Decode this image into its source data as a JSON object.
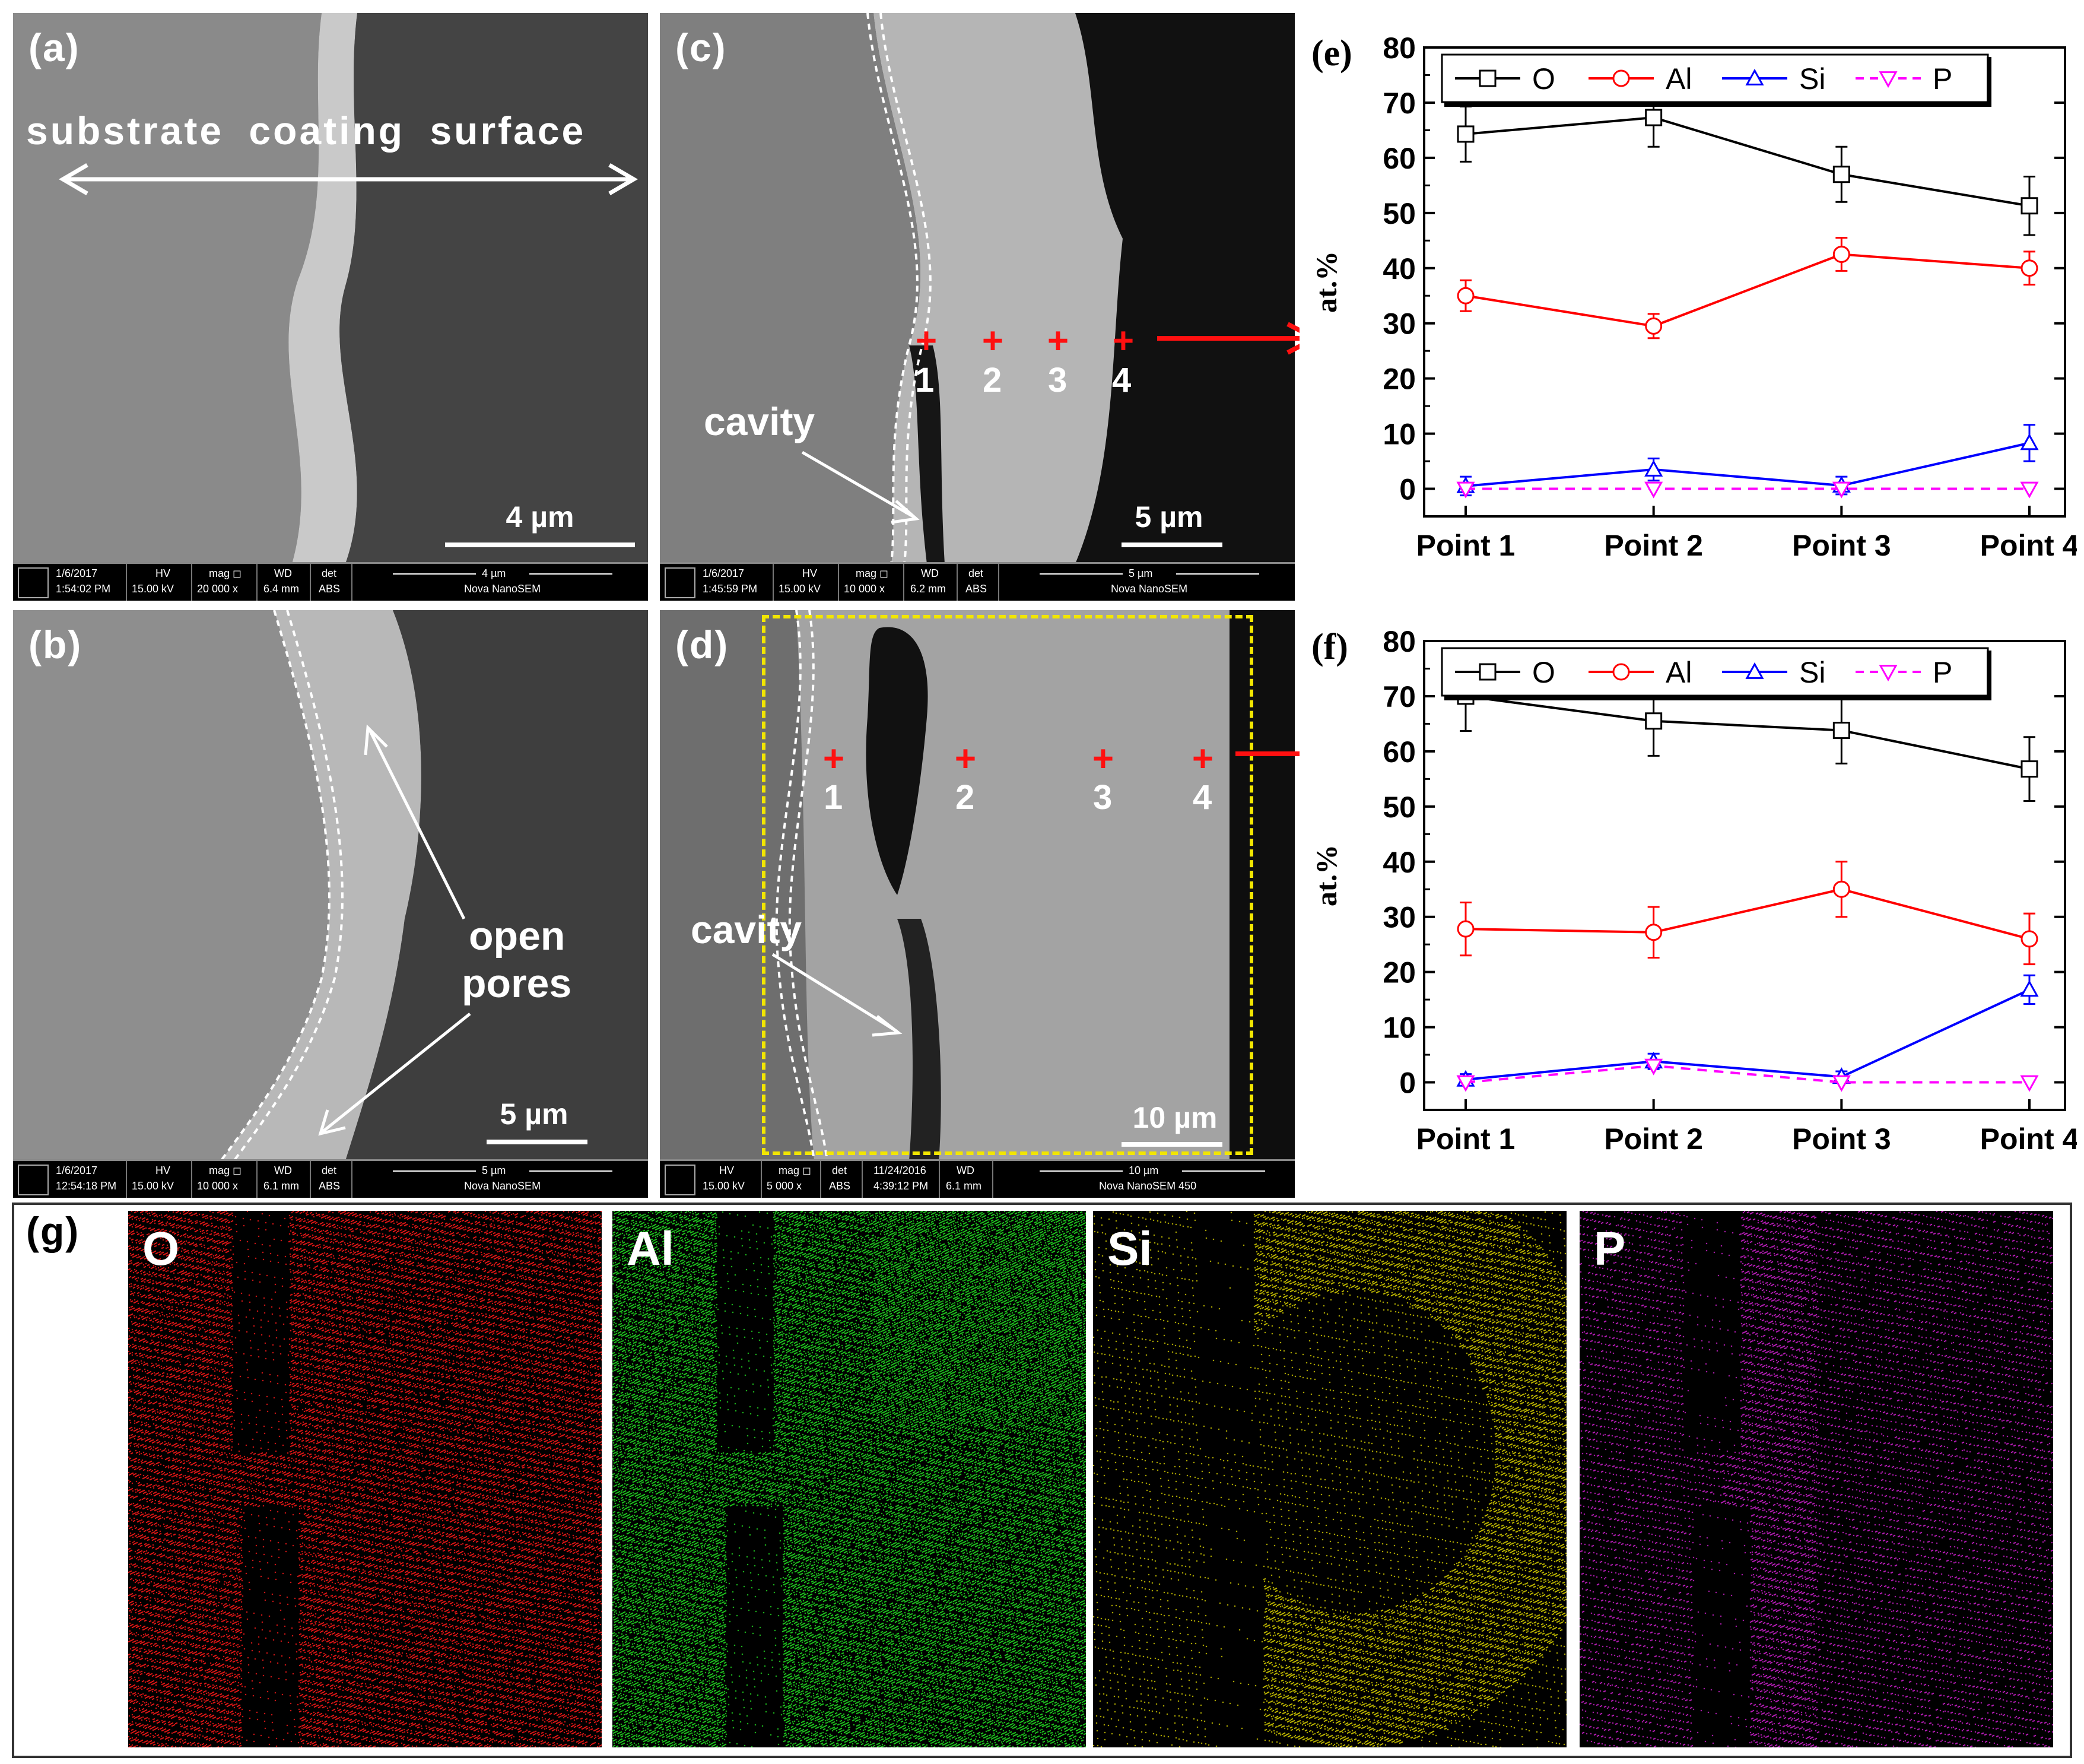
{
  "panels": {
    "a": {
      "label": "(a)",
      "annotation": "substrate coating surface",
      "scale": "4 µm",
      "info": {
        "date": "1/6/2017",
        "time": "1:54:02 PM",
        "hv": "15.00 kV",
        "mag": "20 000 x",
        "wd": "6.4 mm",
        "det": "ABS",
        "scale": "4 µm",
        "instrument": "Nova NanoSEM",
        "hv_h": "HV",
        "mag_h": "mag ◻",
        "wd_h": "WD",
        "det_h": "det"
      }
    },
    "b": {
      "label": "(b)",
      "annotation_line1": "open",
      "annotation_line2": "pores",
      "scale": "5 µm",
      "info": {
        "date": "1/6/2017",
        "time": "12:54:18 PM",
        "hv": "15.00 kV",
        "mag": "10 000 x",
        "wd": "6.1 mm",
        "det": "ABS",
        "scale": "5 µm",
        "instrument": "Nova NanoSEM",
        "hv_h": "HV",
        "mag_h": "mag ◻",
        "wd_h": "WD",
        "det_h": "det"
      }
    },
    "c": {
      "label": "(c)",
      "annotation": "cavity",
      "scale": "5 µm",
      "points": [
        "1",
        "2",
        "3",
        "4"
      ],
      "info": {
        "date": "1/6/2017",
        "time": "1:45:59 PM",
        "hv": "15.00 kV",
        "mag": "10 000 x",
        "wd": "6.2 mm",
        "det": "ABS",
        "scale": "5 µm",
        "instrument": "Nova NanoSEM",
        "hv_h": "HV",
        "mag_h": "mag ◻",
        "wd_h": "WD",
        "det_h": "det"
      }
    },
    "d": {
      "label": "(d)",
      "annotation": "cavity",
      "scale": "10 µm",
      "points": [
        "1",
        "2",
        "3",
        "4"
      ],
      "info": {
        "hv": "15.00 kV",
        "mag": "5 000 x",
        "det": "ABS",
        "date": "11/24/2016",
        "time": "4:39:12 PM",
        "wd": "6.1 mm",
        "scale": "10 µm",
        "instrument": "Nova NanoSEM 450",
        "hv_h": "HV",
        "mag_h": "mag ◻",
        "det_h": "det",
        "date_h": "",
        "wd_h": "WD"
      }
    }
  },
  "chart_data": [
    {
      "type": "line",
      "panel_label": "(e)",
      "categories": [
        "Point 1",
        "Point 2",
        "Point 3",
        "Point 4"
      ],
      "ylabel": "at.%",
      "xlabel": "",
      "ylim": [
        -5,
        80
      ],
      "yticks": [
        0,
        10,
        20,
        30,
        40,
        50,
        60,
        70,
        80
      ],
      "legend_position": "top",
      "series": [
        {
          "name": "O",
          "color": "#000000",
          "marker": "square",
          "dash": false,
          "values": [
            64.3,
            67.3,
            57.0,
            51.3
          ],
          "errors": [
            5.0,
            5.3,
            5.0,
            5.3
          ]
        },
        {
          "name": "Al",
          "color": "#ff0000",
          "marker": "circle",
          "dash": false,
          "values": [
            35.0,
            29.5,
            42.5,
            40.0
          ],
          "errors": [
            2.8,
            2.2,
            3.0,
            3.0
          ]
        },
        {
          "name": "Si",
          "color": "#0000ff",
          "marker": "triangle-up",
          "dash": false,
          "values": [
            0.5,
            3.5,
            0.6,
            8.3
          ],
          "errors": [
            1.7,
            2.0,
            1.6,
            3.3
          ]
        },
        {
          "name": "P",
          "color": "#ff00ff",
          "marker": "triangle-down",
          "dash": true,
          "values": [
            0.0,
            0.0,
            0.0,
            0.0
          ],
          "errors": [
            0,
            0,
            0,
            0
          ]
        }
      ]
    },
    {
      "type": "line",
      "panel_label": "(f)",
      "categories": [
        "Point 1",
        "Point 2",
        "Point 3",
        "Point 4"
      ],
      "ylabel": "at.%",
      "xlabel": "",
      "ylim": [
        -5,
        80
      ],
      "yticks": [
        0,
        10,
        20,
        30,
        40,
        50,
        60,
        70,
        80
      ],
      "legend_position": "top",
      "series": [
        {
          "name": "O",
          "color": "#000000",
          "marker": "square",
          "dash": false,
          "values": [
            70.0,
            65.5,
            63.8,
            56.8
          ],
          "errors": [
            6.3,
            6.3,
            6.0,
            5.8
          ]
        },
        {
          "name": "Al",
          "color": "#ff0000",
          "marker": "circle",
          "dash": false,
          "values": [
            27.8,
            27.2,
            35.0,
            26.0
          ],
          "errors": [
            4.8,
            4.6,
            5.0,
            4.6
          ]
        },
        {
          "name": "Si",
          "color": "#0000ff",
          "marker": "triangle-up",
          "dash": false,
          "values": [
            0.5,
            3.8,
            1.0,
            16.8
          ],
          "errors": [
            1.0,
            1.4,
            1.0,
            2.6
          ]
        },
        {
          "name": "P",
          "color": "#ff00ff",
          "marker": "triangle-down",
          "dash": true,
          "values": [
            0.0,
            3.0,
            0.0,
            0.0
          ],
          "errors": [
            0,
            0,
            0,
            0
          ]
        }
      ]
    }
  ],
  "edx_maps": {
    "panel_label": "(g)",
    "maps": [
      {
        "element": "O",
        "color": "#ff1a1a"
      },
      {
        "element": "Al",
        "color": "#22e022"
      },
      {
        "element": "Si",
        "color": "#d8d000"
      },
      {
        "element": "P",
        "color": "#d020d0"
      }
    ]
  }
}
